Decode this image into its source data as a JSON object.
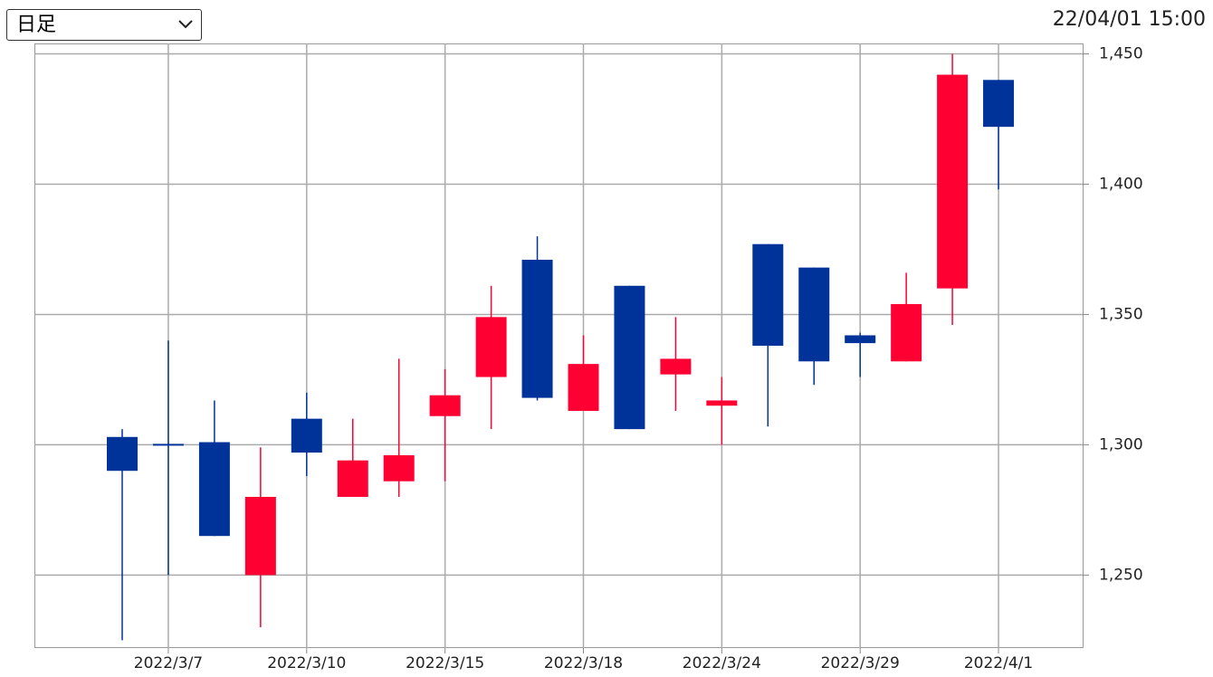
{
  "header": {
    "period": "日足",
    "timestamp": "22/04/01 15:00"
  },
  "chart_data": {
    "type": "candlestick",
    "categories": [
      null,
      "2022/3/7",
      null,
      null,
      "2022/3/10",
      null,
      null,
      "2022/3/15",
      null,
      null,
      "2022/3/18",
      null,
      null,
      "2022/3/24",
      null,
      null,
      "2022/3/29",
      null,
      null,
      "2022/4/1"
    ],
    "open": [
      1303,
      1300,
      1301,
      1250,
      1310,
      1280,
      1286,
      1311,
      1326,
      1371,
      1313,
      1361,
      1327,
      1315,
      1377,
      1368,
      1342,
      1332,
      1360,
      1440
    ],
    "high": [
      1306,
      1340,
      1317,
      1299,
      1320,
      1310,
      1333,
      1329,
      1361,
      1380,
      1342,
      1361,
      1349,
      1326,
      1377,
      1368,
      1343,
      1366,
      1450,
      1440
    ],
    "low": [
      1225,
      1250,
      1265,
      1230,
      1288,
      1280,
      1280,
      1286,
      1306,
      1317,
      1313,
      1306,
      1313,
      1300,
      1307,
      1323,
      1326,
      1332,
      1346,
      1398
    ],
    "close": [
      1290,
      1300,
      1265,
      1280,
      1297,
      1294,
      1296,
      1319,
      1349,
      1318,
      1331,
      1306,
      1333,
      1317,
      1338,
      1332,
      1339,
      1354,
      1442,
      1422
    ],
    "up_color": "#ff0033",
    "down_color": "#003399",
    "ylim": [
      1222,
      1454
    ],
    "yticks": [
      {
        "value": 1250,
        "label": "1,250"
      },
      {
        "value": 1300,
        "label": "1,300"
      },
      {
        "value": 1350,
        "label": "1,350"
      },
      {
        "value": 1400,
        "label": "1,400"
      },
      {
        "value": 1450,
        "label": "1,450"
      }
    ],
    "grid": true
  }
}
